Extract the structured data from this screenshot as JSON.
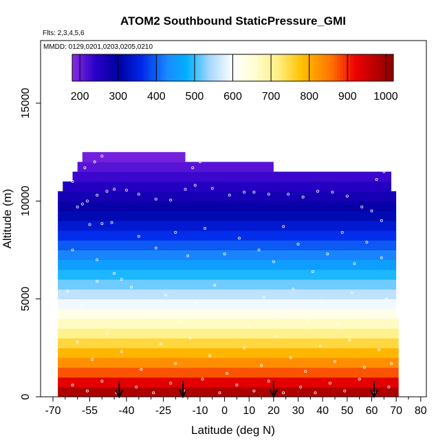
{
  "chart_data": {
    "type": "heatmap",
    "title": "ATOM2 Southbound StaticPressure_GMI",
    "subtitle_flights": "Flts: 2,3,4,5,6",
    "subtitle_dates": "MMDD: 0129,0201,0203,0205,0210",
    "xlabel": "Latitude (deg N)",
    "ylabel": "Altitude (m)",
    "xlim": [
      -70,
      85
    ],
    "ylim": [
      0,
      17500
    ],
    "x_ticks": [
      -70,
      -55,
      -40,
      -25,
      -10,
      0,
      10,
      20,
      30,
      40,
      50,
      60,
      70,
      80
    ],
    "x_tick_labels": [
      "-70",
      "-55",
      "-40",
      "-25",
      "-10",
      "0",
      "10",
      "20",
      "30",
      "40",
      "50",
      "60",
      "70",
      "80"
    ],
    "x_minor_ticks": [
      -65,
      -60,
      -50,
      -45,
      -35,
      -30,
      -20,
      -15,
      -5,
      5,
      15,
      25,
      35,
      45,
      55,
      65,
      75,
      85
    ],
    "y_ticks": [
      0,
      5000,
      10000,
      15000
    ],
    "y_tick_labels": [
      "0",
      "5000",
      "10000",
      "15000"
    ],
    "colorbar": {
      "min": 180,
      "max": 1020,
      "ticks": [
        200,
        300,
        400,
        500,
        600,
        700,
        800,
        900,
        1000
      ],
      "tick_labels": [
        "200",
        "300",
        "400",
        "500",
        "600",
        "700",
        "800",
        "900",
        "1000"
      ],
      "colors": [
        {
          "v": 180,
          "c": "#8a2be2"
        },
        {
          "v": 240,
          "c": "#2a00c8"
        },
        {
          "v": 300,
          "c": "#0000a0"
        },
        {
          "v": 360,
          "c": "#0026e8"
        },
        {
          "v": 430,
          "c": "#1a8cff"
        },
        {
          "v": 480,
          "c": "#00b0ff"
        },
        {
          "v": 540,
          "c": "#a8d8ff"
        },
        {
          "v": 600,
          "c": "#ffffff"
        },
        {
          "v": 660,
          "c": "#fffdd0"
        },
        {
          "v": 720,
          "c": "#ffee80"
        },
        {
          "v": 780,
          "c": "#ffc000"
        },
        {
          "v": 860,
          "c": "#ff7000"
        },
        {
          "v": 920,
          "c": "#ee0000"
        },
        {
          "v": 1020,
          "c": "#8b0000"
        }
      ]
    },
    "field_bands": [
      {
        "alt_min": 0,
        "alt_max": 500,
        "pressure": 985,
        "lat_min": -68,
        "lat_max": 71
      },
      {
        "alt_min": 500,
        "alt_max": 1000,
        "pressure": 930,
        "lat_min": -68,
        "lat_max": 71
      },
      {
        "alt_min": 1000,
        "alt_max": 1500,
        "pressure": 875,
        "lat_min": -68,
        "lat_max": 71
      },
      {
        "alt_min": 1500,
        "alt_max": 2000,
        "pressure": 830,
        "lat_min": -68,
        "lat_max": 71
      },
      {
        "alt_min": 2000,
        "alt_max": 2500,
        "pressure": 790,
        "lat_min": -68,
        "lat_max": 71
      },
      {
        "alt_min": 2500,
        "alt_max": 3000,
        "pressure": 750,
        "lat_min": -68,
        "lat_max": 71
      },
      {
        "alt_min": 3000,
        "alt_max": 3500,
        "pressure": 710,
        "lat_min": -68,
        "lat_max": 71
      },
      {
        "alt_min": 3500,
        "alt_max": 4000,
        "pressure": 670,
        "lat_min": -68,
        "lat_max": 71
      },
      {
        "alt_min": 4000,
        "alt_max": 4500,
        "pressure": 630,
        "lat_min": -68,
        "lat_max": 70
      },
      {
        "alt_min": 4500,
        "alt_max": 5000,
        "pressure": 590,
        "lat_min": -68,
        "lat_max": 70
      },
      {
        "alt_min": 5000,
        "alt_max": 5500,
        "pressure": 555,
        "lat_min": -68,
        "lat_max": 70
      },
      {
        "alt_min": 5500,
        "alt_max": 6000,
        "pressure": 520,
        "lat_min": -68,
        "lat_max": 70
      },
      {
        "alt_min": 6000,
        "alt_max": 6500,
        "pressure": 490,
        "lat_min": -68,
        "lat_max": 70
      },
      {
        "alt_min": 6500,
        "alt_max": 7000,
        "pressure": 455,
        "lat_min": -68,
        "lat_max": 70
      },
      {
        "alt_min": 7000,
        "alt_max": 7500,
        "pressure": 425,
        "lat_min": -68,
        "lat_max": 70
      },
      {
        "alt_min": 7500,
        "alt_max": 8000,
        "pressure": 395,
        "lat_min": -68,
        "lat_max": 70
      },
      {
        "alt_min": 8000,
        "alt_max": 8500,
        "pressure": 365,
        "lat_min": -68,
        "lat_max": 70
      },
      {
        "alt_min": 8500,
        "alt_max": 9000,
        "pressure": 340,
        "lat_min": -68,
        "lat_max": 70
      },
      {
        "alt_min": 9000,
        "alt_max": 9500,
        "pressure": 315,
        "lat_min": -68,
        "lat_max": 70
      },
      {
        "alt_min": 9500,
        "alt_max": 10000,
        "pressure": 290,
        "lat_min": -68,
        "lat_max": 70
      },
      {
        "alt_min": 10000,
        "alt_max": 10500,
        "pressure": 270,
        "lat_min": -68,
        "lat_max": 70
      },
      {
        "alt_min": 10500,
        "alt_max": 11000,
        "pressure": 250,
        "lat_min": -66,
        "lat_max": 68
      },
      {
        "alt_min": 11000,
        "alt_max": 11500,
        "pressure": 230,
        "lat_min": -62,
        "lat_max": 68
      },
      {
        "alt_min": 11500,
        "alt_max": 12000,
        "pressure": 212,
        "lat_min": -60,
        "lat_max": 20
      },
      {
        "alt_min": 12000,
        "alt_max": 12500,
        "pressure": 195,
        "lat_min": -58,
        "lat_max": -16
      }
    ],
    "observation_points": [
      {
        "lat": -60,
        "alt": 9700
      },
      {
        "lat": -58,
        "alt": 9850
      },
      {
        "lat": -56,
        "alt": 10000
      },
      {
        "lat": -52,
        "alt": 10300
      },
      {
        "lat": -48,
        "alt": 10500
      },
      {
        "lat": -45,
        "alt": 10600
      },
      {
        "lat": -40,
        "alt": 10550
      },
      {
        "lat": -35,
        "alt": 10350
      },
      {
        "lat": -28,
        "alt": 10100
      },
      {
        "lat": -22,
        "alt": 10050
      },
      {
        "lat": -16,
        "alt": 10600
      },
      {
        "lat": -12,
        "alt": 10800
      },
      {
        "lat": -5,
        "alt": 10650
      },
      {
        "lat": 2,
        "alt": 10300
      },
      {
        "lat": 8,
        "alt": 10450
      },
      {
        "lat": 12,
        "alt": 10450
      },
      {
        "lat": 18,
        "alt": 10350
      },
      {
        "lat": 26,
        "alt": 10350
      },
      {
        "lat": 32,
        "alt": 10200
      },
      {
        "lat": 38,
        "alt": 10500
      },
      {
        "lat": 44,
        "alt": 10450
      },
      {
        "lat": 50,
        "alt": 10250
      },
      {
        "lat": 56,
        "alt": 9700
      },
      {
        "lat": 60,
        "alt": 9500
      },
      {
        "lat": 64,
        "alt": 9000
      },
      {
        "lat": -62,
        "alt": 11000
      },
      {
        "lat": -57,
        "alt": 11700
      },
      {
        "lat": -53,
        "alt": 12000
      },
      {
        "lat": -50,
        "alt": 12300
      },
      {
        "lat": -13,
        "alt": 11700
      },
      {
        "lat": -10,
        "alt": 12000
      },
      {
        "lat": 62,
        "alt": 11100
      },
      {
        "lat": 65,
        "alt": 11500
      },
      {
        "lat": -55,
        "alt": 8800
      },
      {
        "lat": -50,
        "alt": 8850
      },
      {
        "lat": -46,
        "alt": 8900
      },
      {
        "lat": -62,
        "alt": 7500
      },
      {
        "lat": -52,
        "alt": 7000
      },
      {
        "lat": -45,
        "alt": 6300
      },
      {
        "lat": -42,
        "alt": 6000
      },
      {
        "lat": -35,
        "alt": 8200
      },
      {
        "lat": -28,
        "alt": 7600
      },
      {
        "lat": -20,
        "alt": 8400
      },
      {
        "lat": -15,
        "alt": 7200
      },
      {
        "lat": -8,
        "alt": 8600
      },
      {
        "lat": 0,
        "alt": 7300
      },
      {
        "lat": 6,
        "alt": 8100
      },
      {
        "lat": 14,
        "alt": 7500
      },
      {
        "lat": 20,
        "alt": 6900
      },
      {
        "lat": 24,
        "alt": 8700
      },
      {
        "lat": 30,
        "alt": 7800
      },
      {
        "lat": 36,
        "alt": 6400
      },
      {
        "lat": 42,
        "alt": 7300
      },
      {
        "lat": 48,
        "alt": 8400
      },
      {
        "lat": 53,
        "alt": 6800
      },
      {
        "lat": 58,
        "alt": 7900
      },
      {
        "lat": 64,
        "alt": 7100
      },
      {
        "lat": -64,
        "alt": 5400
      },
      {
        "lat": -58,
        "alt": 4700
      },
      {
        "lat": -52,
        "alt": 5900
      },
      {
        "lat": -44,
        "alt": 4400
      },
      {
        "lat": -38,
        "alt": 5600
      },
      {
        "lat": -30,
        "alt": 4200
      },
      {
        "lat": -24,
        "alt": 5200
      },
      {
        "lat": -18,
        "alt": 3800
      },
      {
        "lat": -12,
        "alt": 4800
      },
      {
        "lat": -4,
        "alt": 5700
      },
      {
        "lat": 3,
        "alt": 4500
      },
      {
        "lat": 10,
        "alt": 3600
      },
      {
        "lat": 16,
        "alt": 5100
      },
      {
        "lat": 22,
        "alt": 4100
      },
      {
        "lat": 28,
        "alt": 5500
      },
      {
        "lat": 34,
        "alt": 3900
      },
      {
        "lat": 40,
        "alt": 4900
      },
      {
        "lat": 46,
        "alt": 3700
      },
      {
        "lat": 52,
        "alt": 5300
      },
      {
        "lat": 58,
        "alt": 4300
      },
      {
        "lat": 66,
        "alt": 5000
      },
      {
        "lat": -60,
        "alt": 2800
      },
      {
        "lat": -54,
        "alt": 1900
      },
      {
        "lat": -48,
        "alt": 3200
      },
      {
        "lat": -42,
        "alt": 2300
      },
      {
        "lat": -34,
        "alt": 1400
      },
      {
        "lat": -26,
        "alt": 2700
      },
      {
        "lat": -20,
        "alt": 1700
      },
      {
        "lat": -14,
        "alt": 3000
      },
      {
        "lat": -6,
        "alt": 2100
      },
      {
        "lat": 1,
        "alt": 1200
      },
      {
        "lat": 8,
        "alt": 2500
      },
      {
        "lat": 15,
        "alt": 1600
      },
      {
        "lat": 21,
        "alt": 3100
      },
      {
        "lat": 27,
        "alt": 2000
      },
      {
        "lat": 33,
        "alt": 1300
      },
      {
        "lat": 39,
        "alt": 2600
      },
      {
        "lat": 45,
        "alt": 1800
      },
      {
        "lat": 51,
        "alt": 2900
      },
      {
        "lat": 57,
        "alt": 1500
      },
      {
        "lat": 63,
        "alt": 2400
      },
      {
        "lat": 68,
        "alt": 1700
      },
      {
        "lat": -62,
        "alt": 600
      },
      {
        "lat": -56,
        "alt": 300
      },
      {
        "lat": -50,
        "alt": 800
      },
      {
        "lat": -44,
        "alt": 200
      },
      {
        "lat": -36,
        "alt": 500
      },
      {
        "lat": -29,
        "alt": 200
      },
      {
        "lat": -22,
        "alt": 700
      },
      {
        "lat": -16,
        "alt": 300
      },
      {
        "lat": -9,
        "alt": 900
      },
      {
        "lat": -2,
        "alt": 200
      },
      {
        "lat": 5,
        "alt": 600
      },
      {
        "lat": 12,
        "alt": 300
      },
      {
        "lat": 18,
        "alt": 800
      },
      {
        "lat": 24,
        "alt": 200
      },
      {
        "lat": 31,
        "alt": 500
      },
      {
        "lat": 37,
        "alt": 200
      },
      {
        "lat": 43,
        "alt": 700
      },
      {
        "lat": 49,
        "alt": 300
      },
      {
        "lat": 55,
        "alt": 900
      },
      {
        "lat": 61,
        "alt": 200
      },
      {
        "lat": 67,
        "alt": 500
      }
    ],
    "airport_arrows_lat": [
      -43,
      -17,
      20,
      61
    ]
  }
}
